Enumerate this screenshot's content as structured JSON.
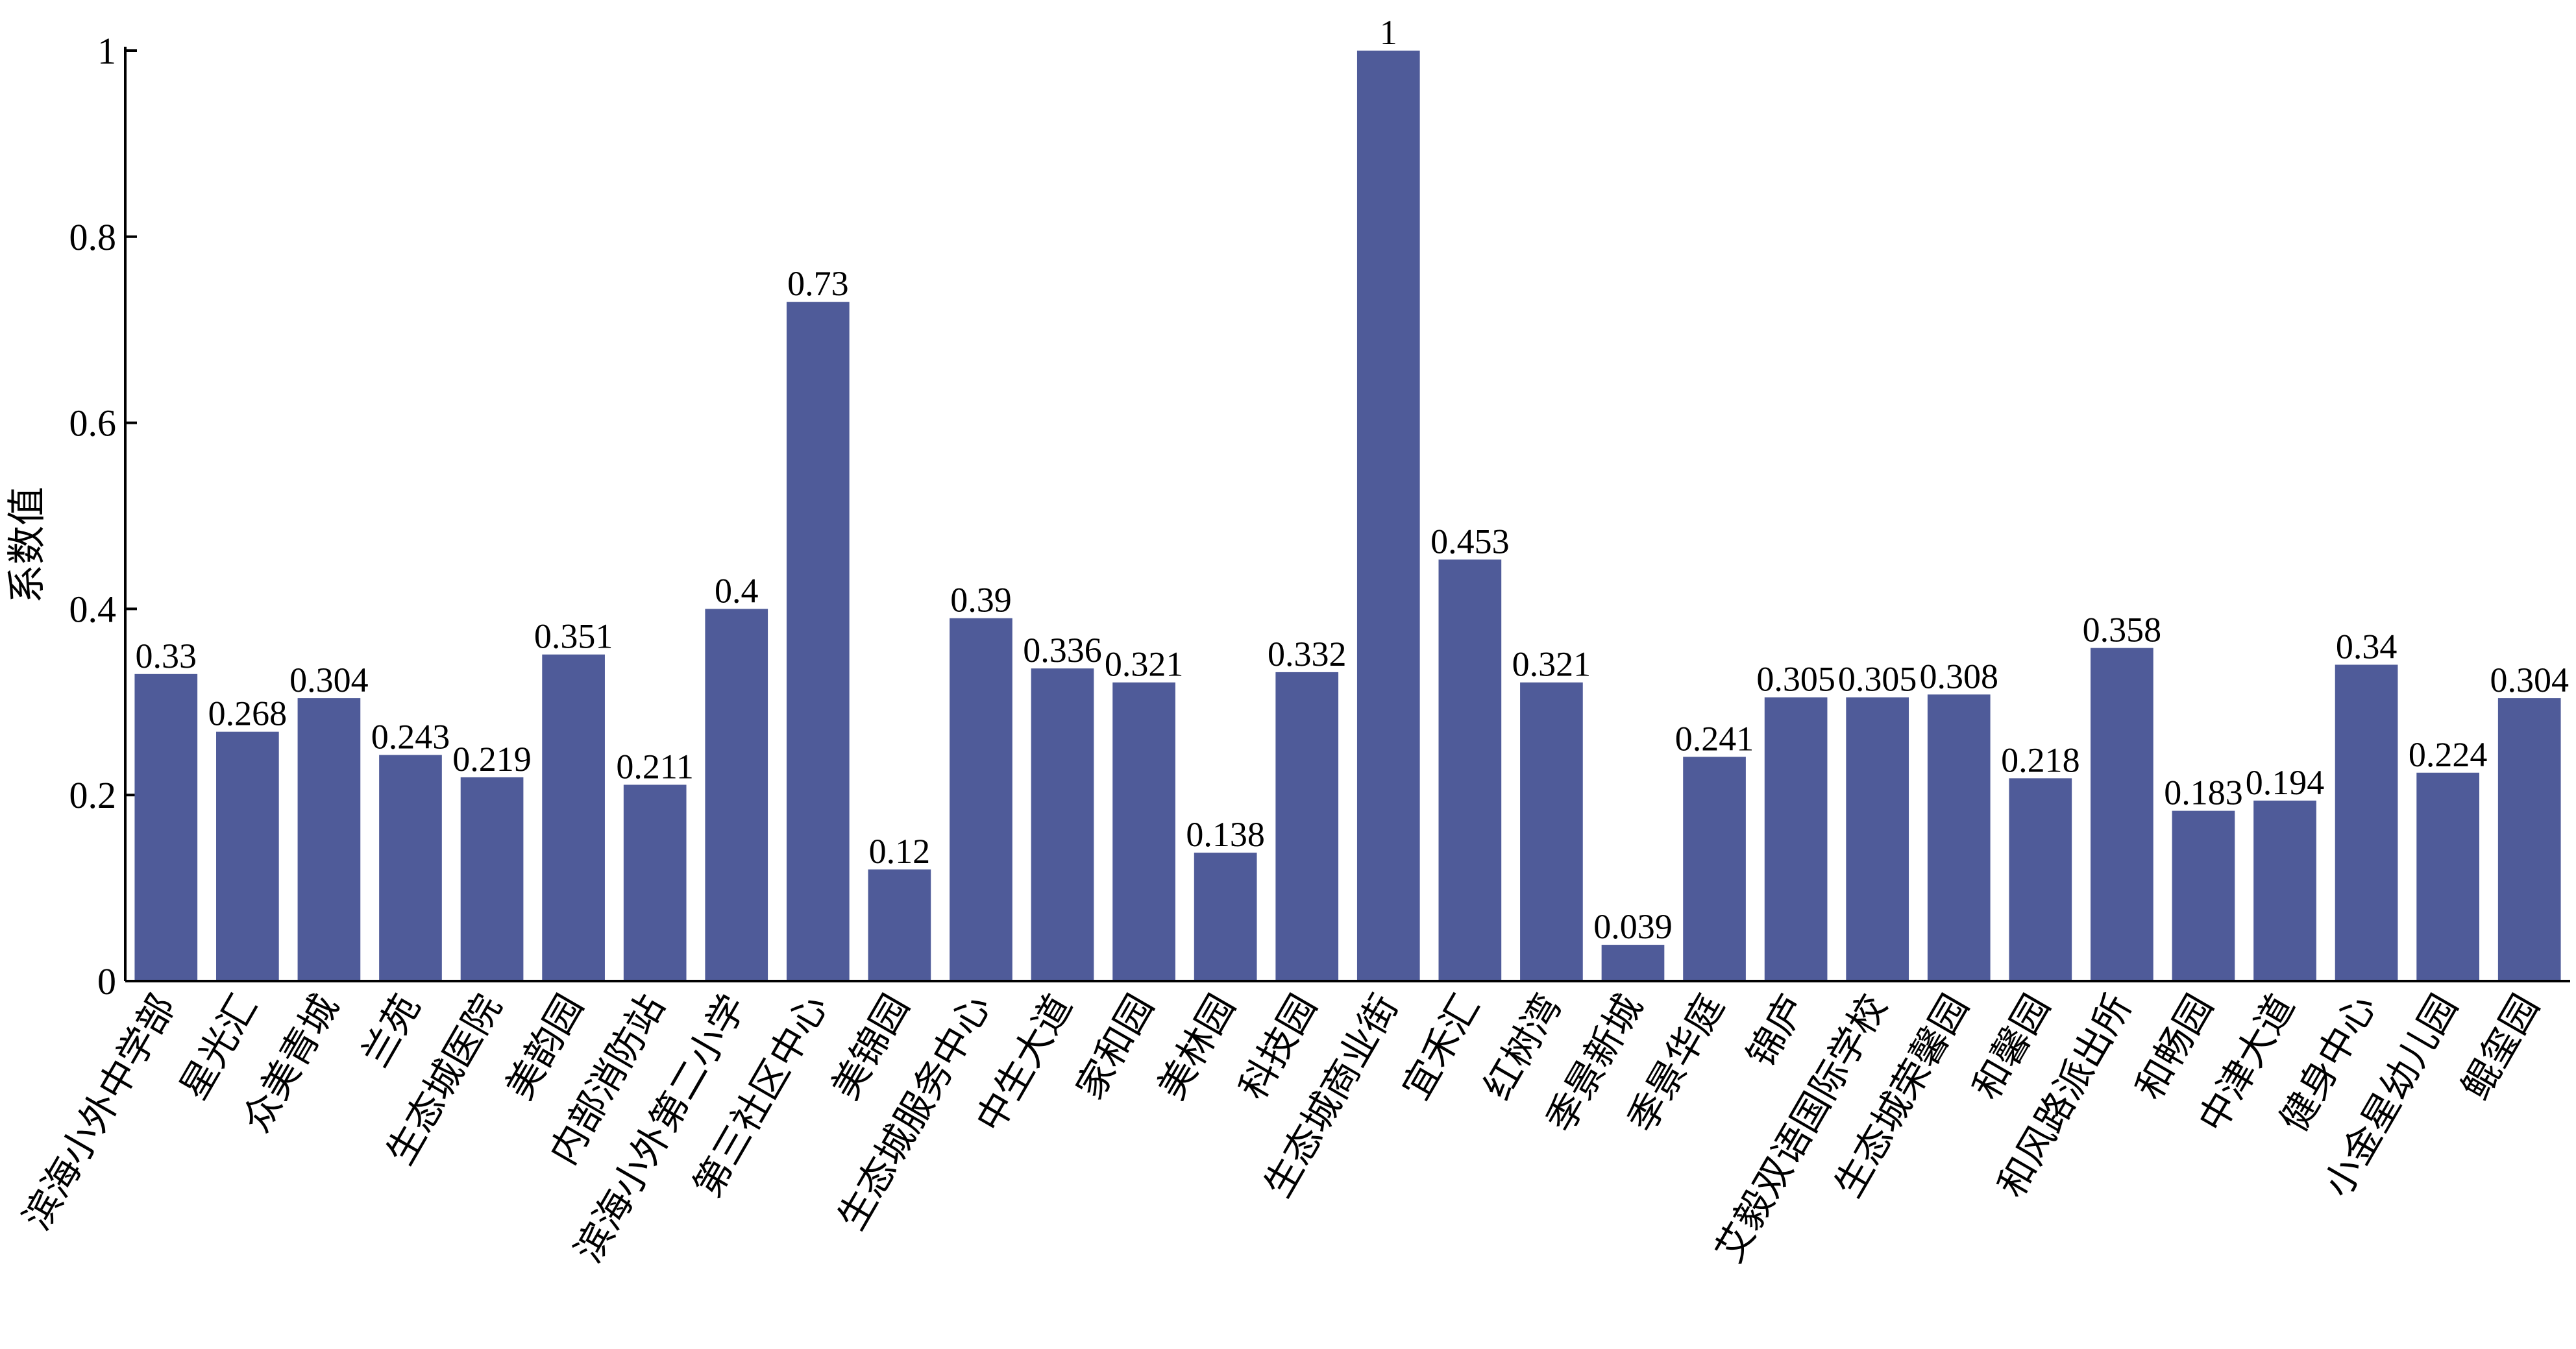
{
  "chart_data": {
    "type": "bar",
    "ylabel": "系数值",
    "ylim": [
      0,
      1
    ],
    "yticks": [
      "0",
      "0.2",
      "0.4",
      "0.6",
      "0.8",
      "1"
    ],
    "bar_color": "#4f5b99",
    "grid": false,
    "categories": [
      "滨海小外中学部",
      "星光汇",
      "众美青城",
      "兰苑",
      "生态城医院",
      "美韵园",
      "内部消防站",
      "滨海小外第二小学",
      "第三社区中心",
      "美锦园",
      "生态城服务中心",
      "中生大道",
      "家和园",
      "美林园",
      "科技园",
      "生态城商业街",
      "宜禾汇",
      "红树湾",
      "季景新城",
      "季景华庭",
      "锦庐",
      "艾毅双语国际学校",
      "生态城荣馨园",
      "和馨园",
      "和风路派出所",
      "和畅园",
      "中津大道",
      "健身中心",
      "小金星幼儿园",
      "鲲玺园"
    ],
    "values": [
      0.33,
      0.268,
      0.304,
      0.243,
      0.219,
      0.351,
      0.211,
      0.4,
      0.73,
      0.12,
      0.39,
      0.336,
      0.321,
      0.138,
      0.332,
      1,
      0.453,
      0.321,
      0.039,
      0.241,
      0.305,
      0.305,
      0.308,
      0.218,
      0.358,
      0.183,
      0.194,
      0.34,
      0.224,
      0.304
    ],
    "data_labels": [
      "0.33",
      "0.268",
      "0.304",
      "0.243",
      "0.219",
      "0.351",
      "0.211",
      "0.4",
      "0.73",
      "0.12",
      "0.39",
      "0.336",
      "0.321",
      "0.138",
      "0.332",
      "1",
      "0.453",
      "0.321",
      "0.039",
      "0.241",
      "0.305",
      "0.305",
      "0.308",
      "0.218",
      "0.358",
      "0.183",
      "0.194",
      "0.34",
      "0.224",
      "0.304"
    ]
  }
}
